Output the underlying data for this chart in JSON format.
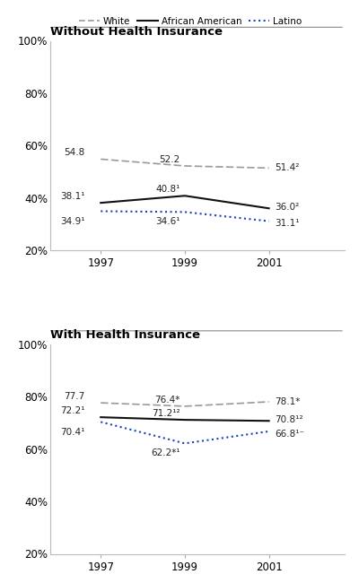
{
  "years": [
    1997,
    1999,
    2001
  ],
  "panel1_title": "Without Health Insurance",
  "panel2_title": "With Health Insurance",
  "panel1": {
    "white": {
      "values": [
        54.8,
        52.2,
        51.4
      ],
      "labels": [
        "54.8",
        "52.2",
        "51.4²"
      ]
    },
    "african": {
      "values": [
        38.1,
        40.8,
        36.0
      ],
      "labels": [
        "38.1¹",
        "40.8¹",
        "36.0²"
      ]
    },
    "latino": {
      "values": [
        34.9,
        34.6,
        31.1
      ],
      "labels": [
        "34.9¹",
        "34.6¹",
        "31.1¹"
      ]
    }
  },
  "panel2": {
    "white": {
      "values": [
        77.7,
        76.4,
        78.1
      ],
      "labels": [
        "77.7",
        "76.4*",
        "78.1*"
      ]
    },
    "african": {
      "values": [
        72.2,
        71.2,
        70.8
      ],
      "labels": [
        "72.2¹",
        "71.2¹²",
        "70.8¹²"
      ]
    },
    "latino": {
      "values": [
        70.4,
        62.2,
        66.8
      ],
      "labels": [
        "70.4¹",
        "62.2*¹",
        "66.8¹⁻"
      ]
    }
  },
  "white_color": "#999999",
  "african_color": "#111111",
  "latino_color": "#1a44bb",
  "ylim": [
    20,
    100
  ],
  "yticks": [
    20,
    40,
    60,
    80,
    100
  ],
  "background_color": "#ffffff",
  "label_fontsize": 7.5,
  "axis_label_fontsize": 8.5,
  "title_fontsize": 9.5
}
